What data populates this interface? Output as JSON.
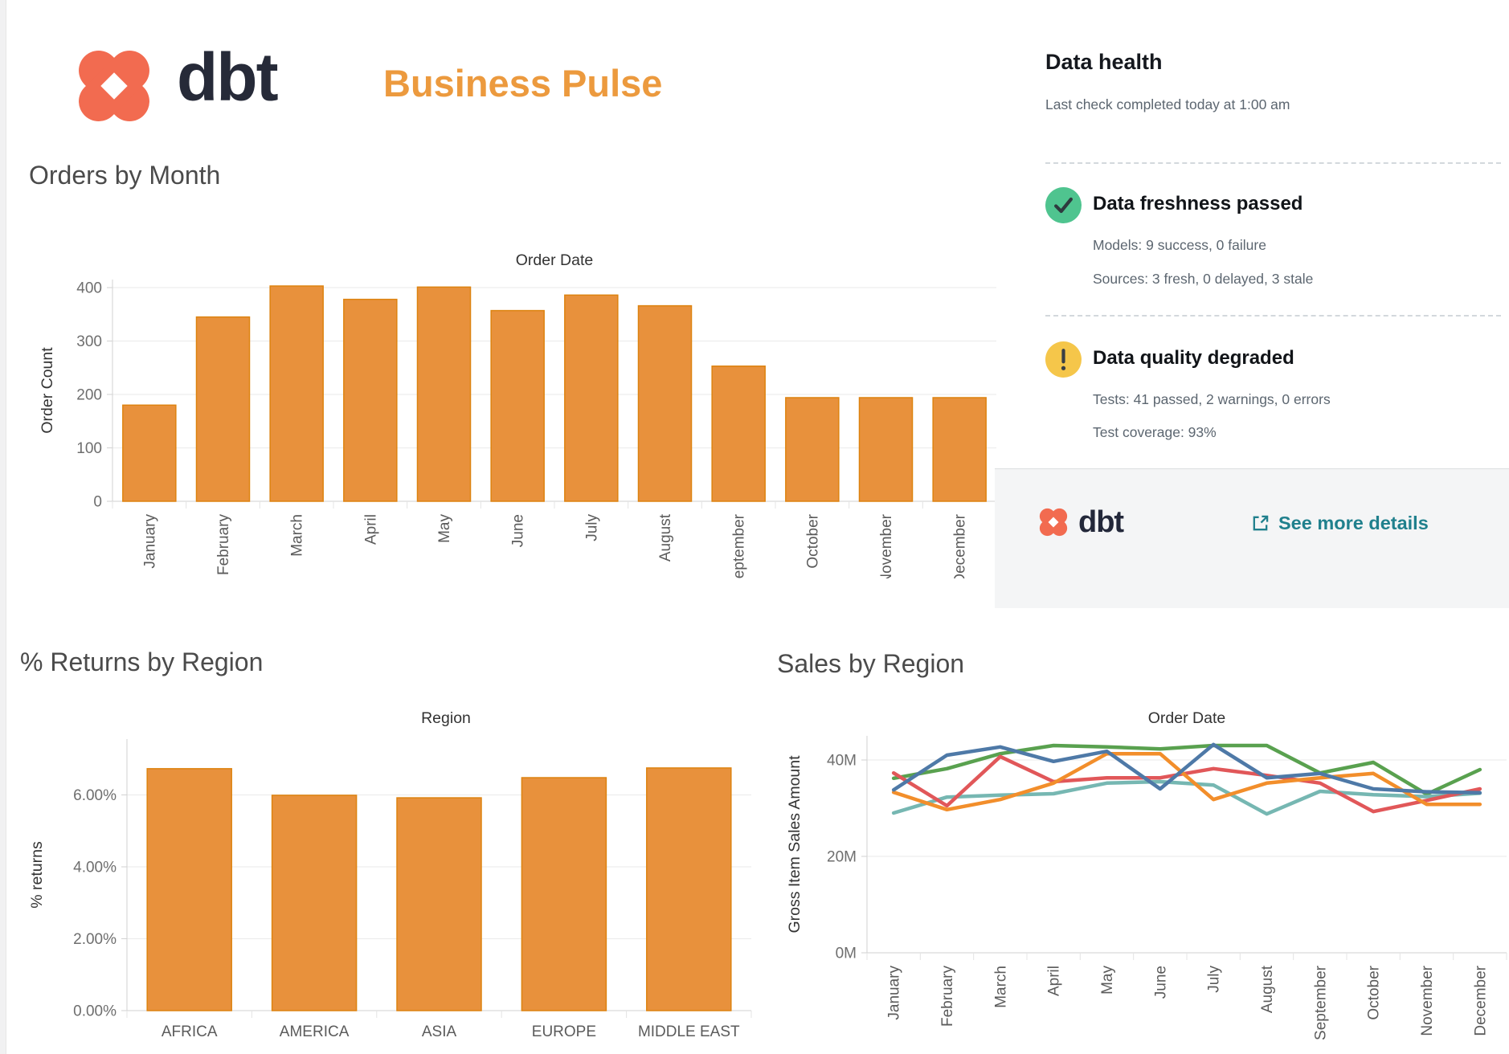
{
  "header": {
    "brand": "dbt",
    "title": "Business Pulse",
    "brand_color": "#F26B50",
    "title_color": "#EC9A3E"
  },
  "data_health": {
    "title": "Data health",
    "subtitle": "Last check completed today at 1:00 am",
    "freshness": {
      "icon": "check-circle",
      "status_color": "#4FC48F",
      "title": "Data freshness passed",
      "line1": "Models: 9 success, 0 failure",
      "line2": "Sources: 3 fresh, 0 delayed, 3 stale"
    },
    "quality": {
      "icon": "warning-circle",
      "status_color": "#F5C64A",
      "title": "Data quality degraded",
      "line1": "Tests: 41 passed, 2 warnings, 0 errors",
      "line2": "Test coverage: 93%"
    },
    "footer": {
      "brand": "dbt",
      "link_label": "See more details",
      "link_color": "#20808D"
    }
  },
  "chart_data": [
    {
      "type": "bar",
      "title": "Orders by Month",
      "axis_title": "Order Date",
      "xlabel": "Order Date",
      "ylabel": "Order Count",
      "categories": [
        "January",
        "February",
        "March",
        "April",
        "May",
        "June",
        "July",
        "August",
        "September",
        "October",
        "November",
        "December"
      ],
      "values": [
        180,
        345,
        403,
        378,
        401,
        357,
        386,
        366,
        253,
        194,
        194,
        194
      ],
      "yticks": [
        0,
        100,
        200,
        300,
        400
      ],
      "ytick_labels": [
        "0",
        "100",
        "200",
        "300",
        "400"
      ],
      "ylim": [
        0,
        430
      ],
      "grid": "horizontal",
      "rotated_labels": true,
      "bar_color": "#E8913C",
      "bar_border": "#DD8310"
    },
    {
      "type": "bar",
      "title": "% Returns by Region",
      "axis_title": "Region",
      "xlabel": "Region",
      "ylabel": "% returns",
      "categories": [
        "AFRICA",
        "AMERICA",
        "ASIA",
        "EUROPE",
        "MIDDLE EAST"
      ],
      "values": [
        6.73,
        5.99,
        5.92,
        6.48,
        6.75
      ],
      "yticks": [
        0,
        2,
        4,
        6
      ],
      "ytick_labels": [
        "0.00%",
        "2.00%",
        "4.00%",
        "6.00%"
      ],
      "ylim": [
        0,
        7.6
      ],
      "grid": "horizontal",
      "rotated_labels": false,
      "bar_color": "#E8913C",
      "bar_border": "#DD8310"
    },
    {
      "type": "line",
      "title": "Sales by Region",
      "axis_title": "Order Date",
      "xlabel": "Order Date",
      "ylabel": "Gross Item Sales Amount",
      "unit": "M",
      "categories": [
        "January",
        "February",
        "March",
        "April",
        "May",
        "June",
        "July",
        "August",
        "September",
        "October",
        "November",
        "December"
      ],
      "series": [
        {
          "name": "green",
          "color": "#59A14F",
          "values": [
            36.2,
            38.2,
            41.3,
            43.0,
            42.7,
            42.3,
            43.0,
            43.0,
            37.3,
            39.5,
            32.9,
            38.0
          ]
        },
        {
          "name": "teal",
          "color": "#76B7B2",
          "values": [
            29.0,
            32.3,
            32.7,
            33.0,
            35.2,
            35.5,
            34.8,
            28.8,
            33.5,
            32.8,
            32.4,
            33.1
          ]
        },
        {
          "name": "red",
          "color": "#E15759",
          "values": [
            37.3,
            30.5,
            40.7,
            35.5,
            36.3,
            36.3,
            38.2,
            36.8,
            35.2,
            29.3,
            31.6,
            34.0
          ]
        },
        {
          "name": "orange",
          "color": "#F28E2B",
          "values": [
            33.3,
            29.7,
            31.8,
            35.2,
            41.3,
            41.3,
            31.8,
            35.2,
            36.3,
            37.2,
            30.8,
            30.8
          ]
        },
        {
          "name": "blue",
          "color": "#4E79A7",
          "values": [
            33.8,
            41.0,
            42.7,
            39.7,
            41.8,
            34.0,
            43.2,
            36.3,
            37.2,
            34.0,
            33.4,
            33.2
          ]
        }
      ],
      "yticks": [
        0,
        20,
        40
      ],
      "ytick_labels": [
        "0M",
        "20M",
        "40M"
      ],
      "ylim": [
        0,
        45
      ],
      "grid": "horizontal",
      "rotated_labels": true
    }
  ]
}
